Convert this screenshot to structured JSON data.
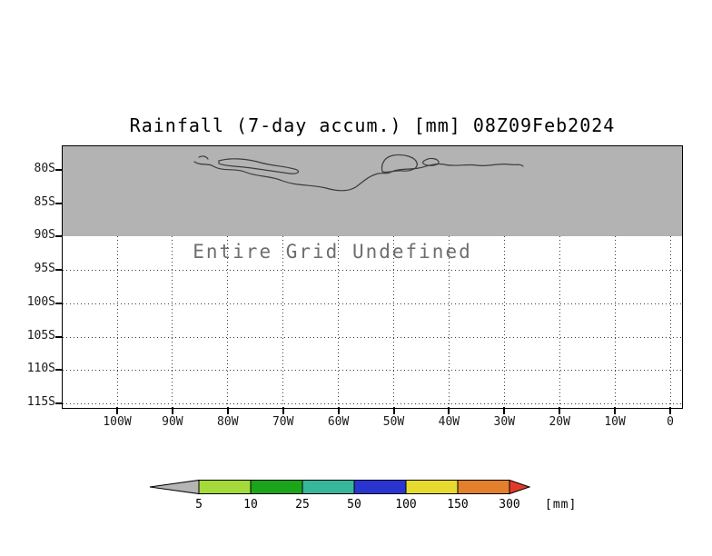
{
  "title": "Rainfall (7-day accum.) [mm] 08Z09Feb2024",
  "map": {
    "undefined_text": "Entire Grid Undefined",
    "shade_color": "#b3b3b3",
    "coastline_color": "#3c3c3c"
  },
  "axes": {
    "y_ticks": [
      "80S",
      "85S",
      "90S",
      "95S",
      "100S",
      "105S",
      "110S",
      "115S"
    ],
    "x_ticks": [
      "100W",
      "90W",
      "80W",
      "70W",
      "60W",
      "50W",
      "40W",
      "30W",
      "20W",
      "10W",
      "0"
    ]
  },
  "colorbar": {
    "levels": [
      "5",
      "10",
      "25",
      "50",
      "100",
      "150",
      "300"
    ],
    "unit": "[mm]",
    "segments": [
      {
        "range": "< 5",
        "color": "#b5b5b5"
      },
      {
        "range": "5-10",
        "color": "#a4da3a"
      },
      {
        "range": "10-25",
        "color": "#1ba51b"
      },
      {
        "range": "25-50",
        "color": "#36b79c"
      },
      {
        "range": "50-100",
        "color": "#2a35d0"
      },
      {
        "range": "100-150",
        "color": "#e6da2e"
      },
      {
        "range": "150-300",
        "color": "#e2802b"
      },
      {
        "range": "> 300",
        "color": "#e23a2a"
      }
    ]
  },
  "chart_data": {
    "type": "heatmap",
    "title": "Rainfall (7-day accum.) [mm] 08Z09Feb2024",
    "x_tick_labels": [
      "100W",
      "90W",
      "80W",
      "70W",
      "60W",
      "50W",
      "40W",
      "30W",
      "20W",
      "10W",
      "0"
    ],
    "y_tick_labels": [
      "80S",
      "85S",
      "90S",
      "95S",
      "100S",
      "105S",
      "110S",
      "115S"
    ],
    "data_status": "Entire Grid Undefined",
    "values": [],
    "colorbar_levels": [
      5,
      10,
      25,
      50,
      100,
      150,
      300
    ],
    "colorbar_unit": "mm",
    "notes": "Gray shading with coastline contours covers the band from the plot top (80S) down to 90S; remainder of grid blank/undefined. Dotted lat/lon gridlines below 90S.",
    "grid": true,
    "legend_position": "bottom"
  }
}
